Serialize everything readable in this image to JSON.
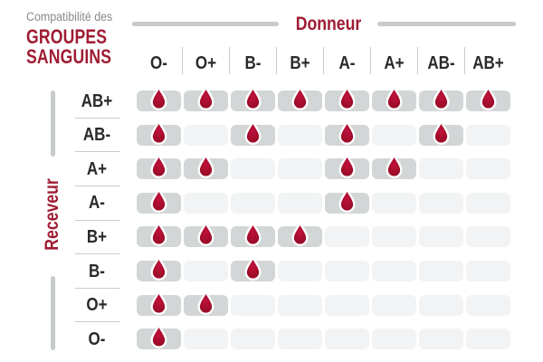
{
  "title": {
    "eyebrow": "Compatibilité des",
    "line1": "GROUPES",
    "line2": "SANGUINS"
  },
  "axes": {
    "donor": "Donneur",
    "recipient": "Receveur"
  },
  "colors": {
    "accent_red": "#9f1c33",
    "drop_center": "#bf123c",
    "drop_mid": "#a50d2c",
    "drop_edge": "#8c0a26",
    "drop_stroke": "#ffffff",
    "cell_filled": "#d3d6d7",
    "cell_empty": "#f2f3f4",
    "divider_gray": "#c9cccd",
    "axis_line_gray": "#c7cbcc",
    "label_dark": "#2b2a29",
    "eyebrow_gray": "#87898c"
  },
  "chart_data": {
    "type": "heatmap",
    "title": "Compatibilité des GROUPES SANGUINS",
    "x_axis_title": "Donneur",
    "y_axis_title": "Receveur",
    "donors": [
      "O-",
      "O+",
      "B-",
      "B+",
      "A-",
      "A+",
      "AB-",
      "AB+"
    ],
    "recipients": [
      "AB+",
      "AB-",
      "A+",
      "A-",
      "B+",
      "B-",
      "O+",
      "O-"
    ],
    "marker": "blood-drop-icon",
    "compatibility": [
      [
        1,
        1,
        1,
        1,
        1,
        1,
        1,
        1
      ],
      [
        1,
        0,
        1,
        0,
        1,
        0,
        1,
        0
      ],
      [
        1,
        1,
        0,
        0,
        1,
        1,
        0,
        0
      ],
      [
        1,
        0,
        0,
        0,
        1,
        0,
        0,
        0
      ],
      [
        1,
        1,
        1,
        1,
        0,
        0,
        0,
        0
      ],
      [
        1,
        0,
        1,
        0,
        0,
        0,
        0,
        0
      ],
      [
        1,
        1,
        0,
        0,
        0,
        0,
        0,
        0
      ],
      [
        1,
        0,
        0,
        0,
        0,
        0,
        0,
        0
      ]
    ]
  }
}
